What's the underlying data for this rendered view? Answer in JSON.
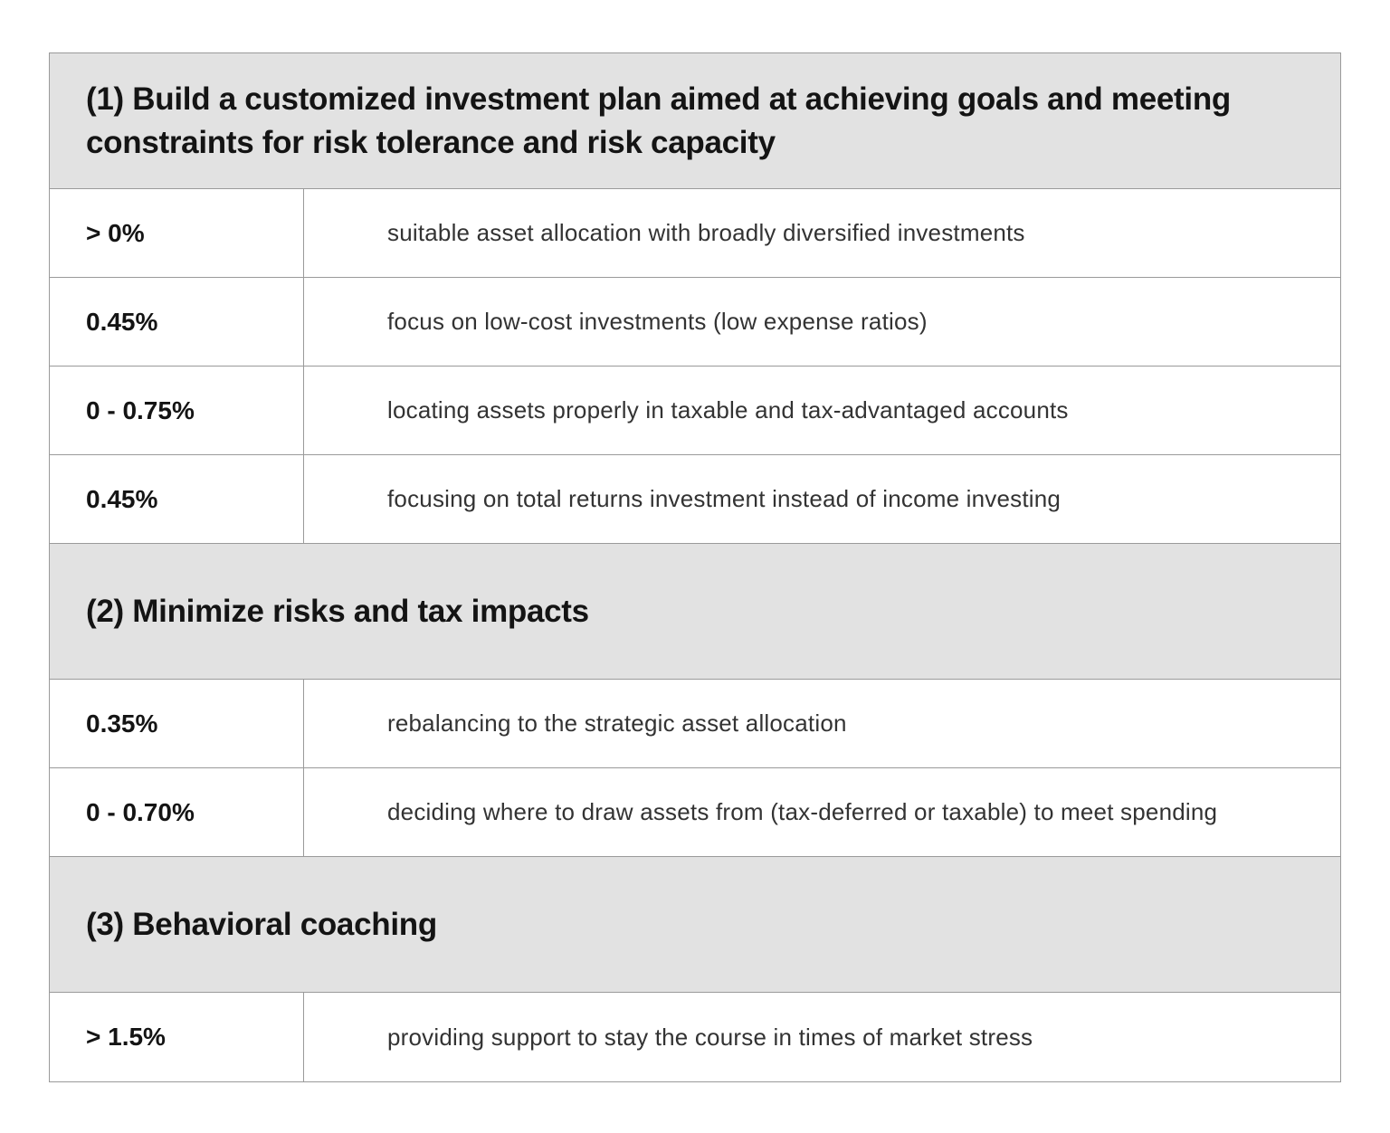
{
  "sections": [
    {
      "title": "(1) Build a customized investment plan aimed at achieving goals and meeting constraints for risk tolerance and risk capacity",
      "rows": [
        {
          "value": "> 0%",
          "description": "suitable asset allocation with broadly diversified investments"
        },
        {
          "value": "0.45%",
          "description": "focus on low-cost investments (low expense ratios)"
        },
        {
          "value": "0 - 0.75%",
          "description": "locating assets properly in taxable and tax-advantaged accounts"
        },
        {
          "value": "0.45%",
          "description": "focusing on total returns investment instead of income investing"
        }
      ]
    },
    {
      "title": "(2) Minimize risks and tax impacts",
      "rows": [
        {
          "value": "0.35%",
          "description": "rebalancing to the strategic asset allocation"
        },
        {
          "value": "0 - 0.70%",
          "description": "deciding where to draw assets from (tax-deferred or taxable) to meet spending"
        }
      ]
    },
    {
      "title": "(3) Behavioral coaching",
      "rows": [
        {
          "value": "> 1.5%",
          "description": "providing support to stay the course in times of market stress"
        }
      ]
    }
  ]
}
